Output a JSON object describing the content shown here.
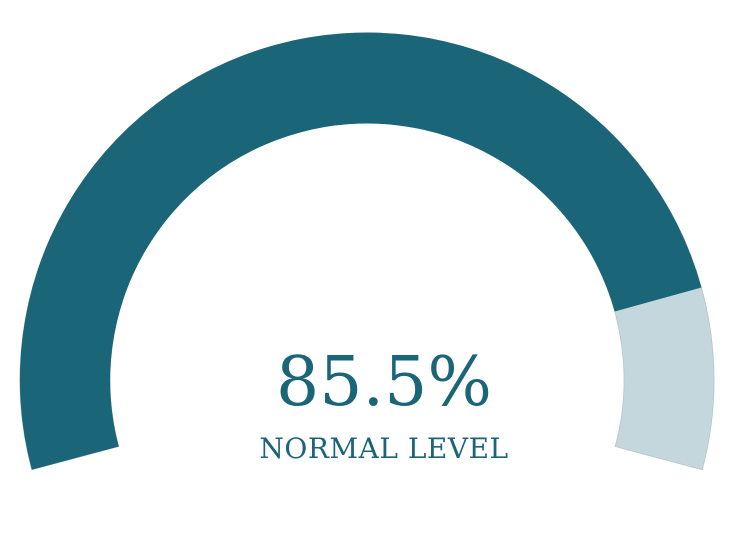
{
  "chart_data": {
    "type": "gauge",
    "value": 85.5,
    "min": 0,
    "max": 100,
    "display_value": "85.5%",
    "label": "NORMAL LEVEL",
    "colors": {
      "fill": "#1b6578",
      "track": "#c3d7dd",
      "text": "#1b6578"
    }
  }
}
